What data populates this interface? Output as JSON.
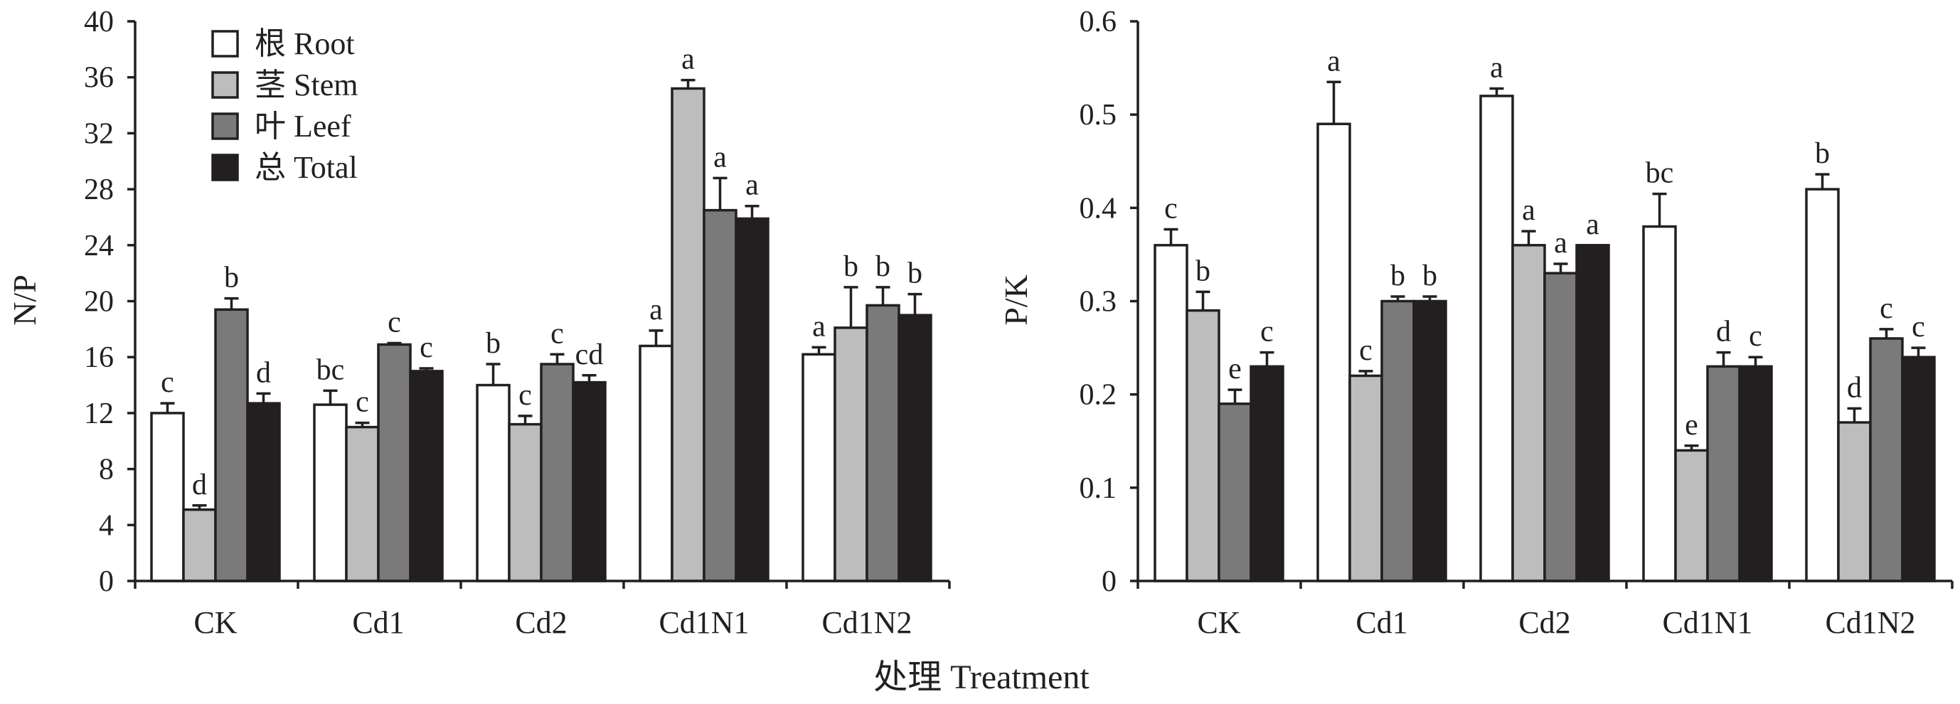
{
  "figure": {
    "xlabel": "处理 Treatment"
  },
  "chart_data": [
    {
      "type": "bar",
      "ylabel": "N/P",
      "categories": [
        "CK",
        "Cd1",
        "Cd2",
        "Cd1N1",
        "Cd1N2"
      ],
      "ylim": [
        0,
        40
      ],
      "yticks": [
        0,
        4,
        8,
        12,
        16,
        20,
        24,
        28,
        32,
        36,
        40
      ],
      "ytick_labels": [
        "0",
        "4",
        "8",
        "12",
        "16",
        "20",
        "24",
        "28",
        "32",
        "36",
        "40"
      ],
      "legend": "top-left",
      "series": [
        {
          "name": "根 Root",
          "color": "#ffffff",
          "values": [
            12.0,
            12.6,
            14.0,
            16.8,
            16.2
          ],
          "errors": [
            0.7,
            1.0,
            1.5,
            1.1,
            0.5
          ],
          "letters": [
            "c",
            "bc",
            "b",
            "a",
            "a"
          ]
        },
        {
          "name": "茎 Stem",
          "color": "#bdbdbd",
          "values": [
            5.1,
            11.0,
            11.2,
            35.2,
            18.1
          ],
          "errors": [
            0.3,
            0.3,
            0.6,
            0.6,
            2.9
          ],
          "letters": [
            "d",
            "c",
            "c",
            "a",
            "b"
          ]
        },
        {
          "name": "叶 Leef",
          "color": "#7a7a7a",
          "values": [
            19.4,
            16.9,
            15.5,
            26.5,
            19.7
          ],
          "errors": [
            0.8,
            0.1,
            0.7,
            2.3,
            1.3
          ],
          "letters": [
            "b",
            "c",
            "c",
            "a",
            "b"
          ]
        },
        {
          "name": "总 Total",
          "color": "#231f20",
          "values": [
            12.7,
            15.0,
            14.2,
            25.9,
            19.0
          ],
          "errors": [
            0.7,
            0.2,
            0.5,
            0.9,
            1.5
          ],
          "letters": [
            "d",
            "c",
            "cd",
            "a",
            "b"
          ]
        }
      ]
    },
    {
      "type": "bar",
      "ylabel": "P/K",
      "categories": [
        "CK",
        "Cd1",
        "Cd2",
        "Cd1N1",
        "Cd1N2"
      ],
      "ylim": [
        0,
        0.6
      ],
      "yticks": [
        0,
        0.1,
        0.2,
        0.3,
        0.4,
        0.5,
        0.6
      ],
      "ytick_labels": [
        "0",
        "0.1",
        "0.2",
        "0.3",
        "0.4",
        "0.5",
        "0.6"
      ],
      "series": [
        {
          "name": "根 Root",
          "color": "#ffffff",
          "values": [
            0.36,
            0.49,
            0.52,
            0.38,
            0.42
          ],
          "errors": [
            0.017,
            0.045,
            0.008,
            0.035,
            0.016
          ],
          "letters": [
            "c",
            "a",
            "a",
            "bc",
            "b"
          ]
        },
        {
          "name": "茎 Stem",
          "color": "#bdbdbd",
          "values": [
            0.29,
            0.22,
            0.36,
            0.14,
            0.17
          ],
          "errors": [
            0.02,
            0.005,
            0.015,
            0.005,
            0.015
          ],
          "letters": [
            "b",
            "c",
            "a",
            "e",
            "d"
          ]
        },
        {
          "name": "叶 Leef",
          "color": "#7a7a7a",
          "values": [
            0.19,
            0.3,
            0.33,
            0.23,
            0.26
          ],
          "errors": [
            0.015,
            0.005,
            0.01,
            0.015,
            0.01
          ],
          "letters": [
            "e",
            "b",
            "a",
            "d",
            "c"
          ]
        },
        {
          "name": "总 Total",
          "color": "#231f20",
          "values": [
            0.23,
            0.3,
            0.36,
            0.23,
            0.24
          ],
          "errors": [
            0.015,
            0.005,
            0.0,
            0.01,
            0.01
          ],
          "letters": [
            "c",
            "b",
            "a",
            "c",
            "c"
          ]
        }
      ]
    }
  ]
}
